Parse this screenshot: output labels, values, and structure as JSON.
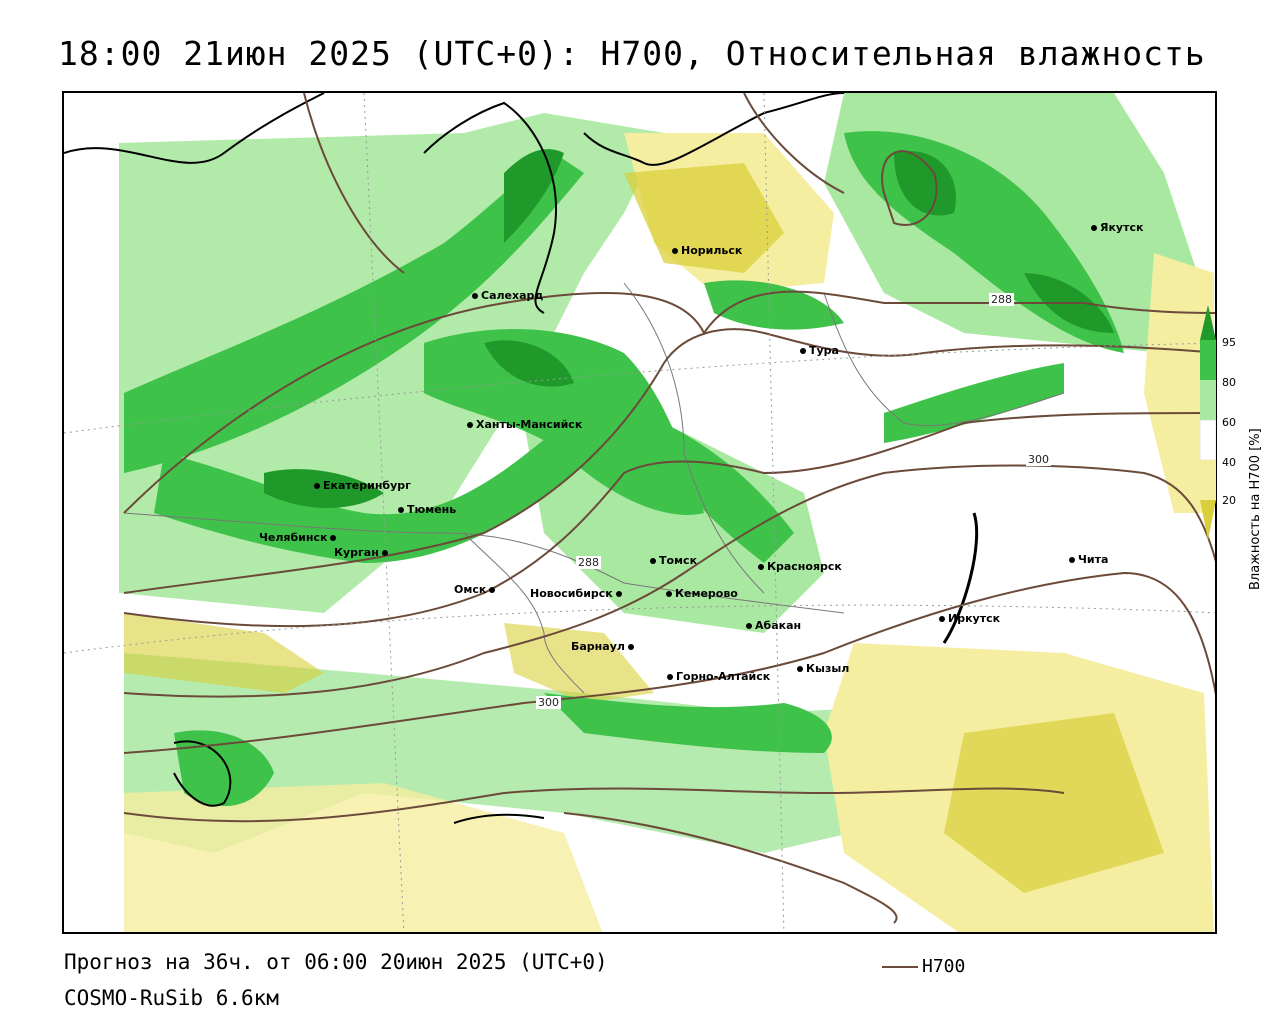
{
  "title": "18:00 21июн 2025 (UTC+0): H700, Относительная влажность",
  "footer": {
    "forecast": "Прогноз на 36ч. от 06:00 20июн 2025 (UTC+0)",
    "model": "COSMO-RuSib 6.6км"
  },
  "legend": {
    "line_label": "H700",
    "line_color": "#6b4a3a"
  },
  "colorbar": {
    "title": "Влажность на H700 [%]",
    "ticks": [
      "95",
      "80",
      "60",
      "40",
      "20"
    ],
    "colors": {
      "very_humid": "#1f9a2a",
      "humid": "#3fc24a",
      "moist": "#a8e8a0",
      "neutral": "#ffffff",
      "dry": "#f5eea0",
      "very_dry": "#d9cf3a"
    }
  },
  "isolines": [
    "288",
    "288",
    "300",
    "300"
  ],
  "cities": [
    "Якутск",
    "Норильск",
    "Салехард",
    "Тура",
    "Ханты-Мансийск",
    "Екатеринбург",
    "Тюмень",
    "Челябинск",
    "Курган",
    "Омск",
    "Новосибирск",
    "Томск",
    "Красноярск",
    "Кемерово",
    "Абакан",
    "Барнаул",
    "Горно-Алтайск",
    "Кызыл",
    "Иркутск",
    "Чита"
  ]
}
